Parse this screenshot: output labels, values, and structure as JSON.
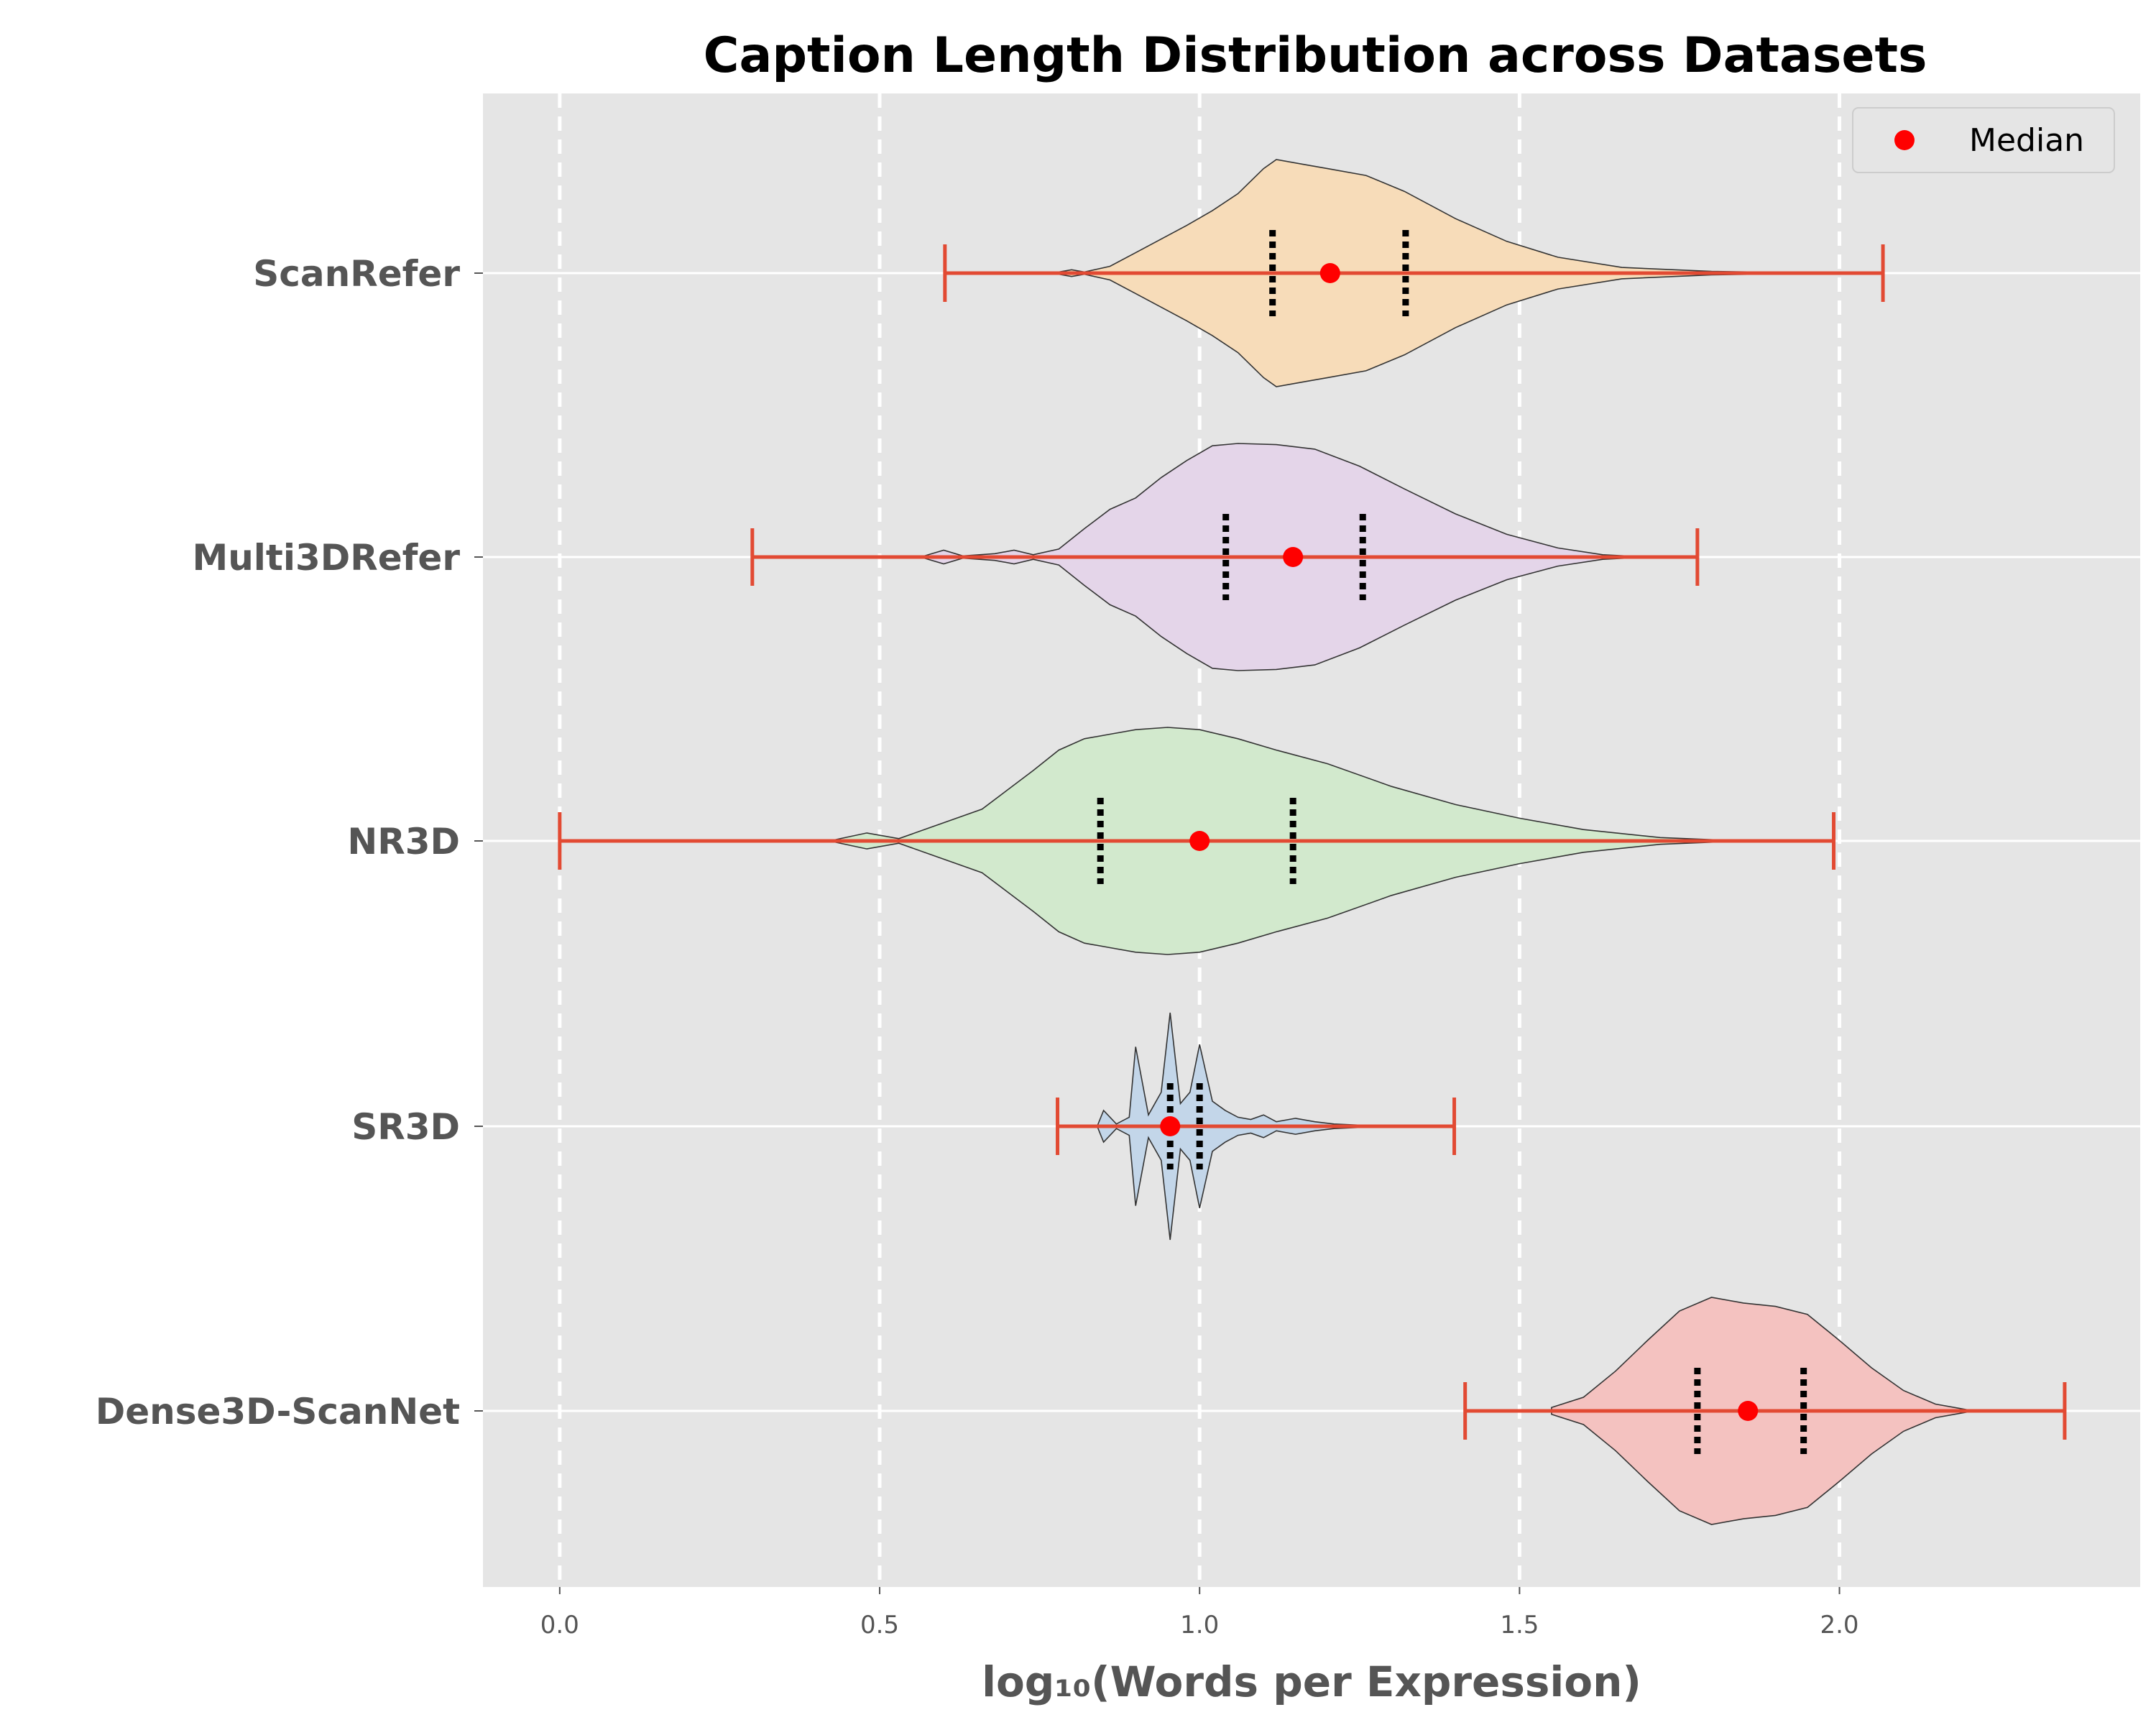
{
  "chart_data": {
    "type": "violin",
    "orientation": "horizontal",
    "title": "Caption Length Distribution across Datasets",
    "xlabel": "log₁₀(Words per Expression)",
    "ylabel": "",
    "xlim": [
      -0.12,
      2.47
    ],
    "x_ticks": [
      0.0,
      0.5,
      1.0,
      1.5,
      2.0
    ],
    "x_tick_labels": [
      "0.0",
      "0.5",
      "1.0",
      "1.5",
      "2.0"
    ],
    "grid": {
      "x": "dashed-white",
      "y": "solid-white"
    },
    "legend": {
      "position": "top-right",
      "entries": [
        "Median"
      ]
    },
    "colors": {
      "background": "#e5e5e5",
      "range_line": "#e24a33",
      "median_marker": "#ff0000",
      "quartile_marker": "#000000",
      "outline": "#333333"
    },
    "series": [
      {
        "name": "ScanRefer",
        "color": "#f7dcb9",
        "min": 0.602,
        "q1": 1.114,
        "median": 1.204,
        "q3": 1.322,
        "max": 2.068,
        "density": [
          [
            0.78,
            0.01
          ],
          [
            0.8,
            0.03
          ],
          [
            0.82,
            0.01
          ],
          [
            0.86,
            0.06
          ],
          [
            0.9,
            0.18
          ],
          [
            0.94,
            0.3
          ],
          [
            0.98,
            0.42
          ],
          [
            1.02,
            0.55
          ],
          [
            1.06,
            0.7
          ],
          [
            1.1,
            0.92
          ],
          [
            1.12,
            1.0
          ],
          [
            1.16,
            0.96
          ],
          [
            1.2,
            0.92
          ],
          [
            1.26,
            0.86
          ],
          [
            1.32,
            0.72
          ],
          [
            1.4,
            0.48
          ],
          [
            1.48,
            0.28
          ],
          [
            1.56,
            0.14
          ],
          [
            1.66,
            0.05
          ],
          [
            1.8,
            0.015
          ],
          [
            2.0,
            0.0
          ]
        ]
      },
      {
        "name": "Multi3DRefer",
        "color": "#e4d5e9",
        "min": 0.301,
        "q1": 1.041,
        "median": 1.146,
        "q3": 1.255,
        "max": 1.778,
        "density": [
          [
            0.57,
            0.01
          ],
          [
            0.6,
            0.06
          ],
          [
            0.63,
            0.01
          ],
          [
            0.68,
            0.03
          ],
          [
            0.71,
            0.06
          ],
          [
            0.74,
            0.02
          ],
          [
            0.78,
            0.07
          ],
          [
            0.82,
            0.25
          ],
          [
            0.86,
            0.42
          ],
          [
            0.9,
            0.52
          ],
          [
            0.94,
            0.7
          ],
          [
            0.98,
            0.85
          ],
          [
            1.02,
            0.98
          ],
          [
            1.06,
            1.0
          ],
          [
            1.12,
            0.99
          ],
          [
            1.18,
            0.95
          ],
          [
            1.25,
            0.8
          ],
          [
            1.32,
            0.6
          ],
          [
            1.4,
            0.38
          ],
          [
            1.48,
            0.2
          ],
          [
            1.56,
            0.08
          ],
          [
            1.63,
            0.02
          ],
          [
            1.7,
            0.0
          ]
        ]
      },
      {
        "name": "NR3D",
        "color": "#d2e9cd",
        "min": 0.0,
        "q1": 0.845,
        "median": 1.0,
        "q3": 1.146,
        "max": 1.991,
        "density": [
          [
            0.43,
            0.01
          ],
          [
            0.48,
            0.07
          ],
          [
            0.53,
            0.02
          ],
          [
            0.58,
            0.12
          ],
          [
            0.62,
            0.2
          ],
          [
            0.66,
            0.28
          ],
          [
            0.7,
            0.45
          ],
          [
            0.74,
            0.62
          ],
          [
            0.78,
            0.8
          ],
          [
            0.82,
            0.9
          ],
          [
            0.86,
            0.94
          ],
          [
            0.9,
            0.98
          ],
          [
            0.95,
            1.0
          ],
          [
            1.0,
            0.98
          ],
          [
            1.06,
            0.9
          ],
          [
            1.12,
            0.8
          ],
          [
            1.2,
            0.68
          ],
          [
            1.3,
            0.48
          ],
          [
            1.4,
            0.32
          ],
          [
            1.5,
            0.2
          ],
          [
            1.6,
            0.1
          ],
          [
            1.72,
            0.03
          ],
          [
            1.85,
            0.0
          ]
        ]
      },
      {
        "name": "SR3D",
        "color": "#c3d6e9",
        "min": 0.778,
        "q1": 0.954,
        "median": 0.954,
        "q3": 1.0,
        "max": 1.398,
        "density": [
          [
            0.84,
            0.0
          ],
          [
            0.85,
            0.14
          ],
          [
            0.87,
            0.02
          ],
          [
            0.89,
            0.08
          ],
          [
            0.9,
            0.7
          ],
          [
            0.92,
            0.1
          ],
          [
            0.94,
            0.3
          ],
          [
            0.954,
            1.0
          ],
          [
            0.97,
            0.2
          ],
          [
            0.985,
            0.3
          ],
          [
            1.0,
            0.72
          ],
          [
            1.02,
            0.22
          ],
          [
            1.04,
            0.14
          ],
          [
            1.06,
            0.08
          ],
          [
            1.08,
            0.06
          ],
          [
            1.1,
            0.1
          ],
          [
            1.12,
            0.04
          ],
          [
            1.15,
            0.07
          ],
          [
            1.18,
            0.04
          ],
          [
            1.21,
            0.02
          ],
          [
            1.25,
            0.01
          ],
          [
            1.3,
            0.0
          ]
        ]
      },
      {
        "name": "Dense3D-ScanNet",
        "color": "#f4c2c0",
        "min": 1.415,
        "q1": 1.778,
        "median": 1.857,
        "q3": 1.944,
        "max": 2.352,
        "density": [
          [
            1.55,
            0.03
          ],
          [
            1.6,
            0.12
          ],
          [
            1.65,
            0.35
          ],
          [
            1.7,
            0.62
          ],
          [
            1.75,
            0.88
          ],
          [
            1.8,
            1.0
          ],
          [
            1.85,
            0.95
          ],
          [
            1.9,
            0.92
          ],
          [
            1.95,
            0.85
          ],
          [
            2.0,
            0.62
          ],
          [
            2.05,
            0.38
          ],
          [
            2.1,
            0.18
          ],
          [
            2.15,
            0.06
          ],
          [
            2.2,
            0.01
          ]
        ]
      }
    ]
  }
}
